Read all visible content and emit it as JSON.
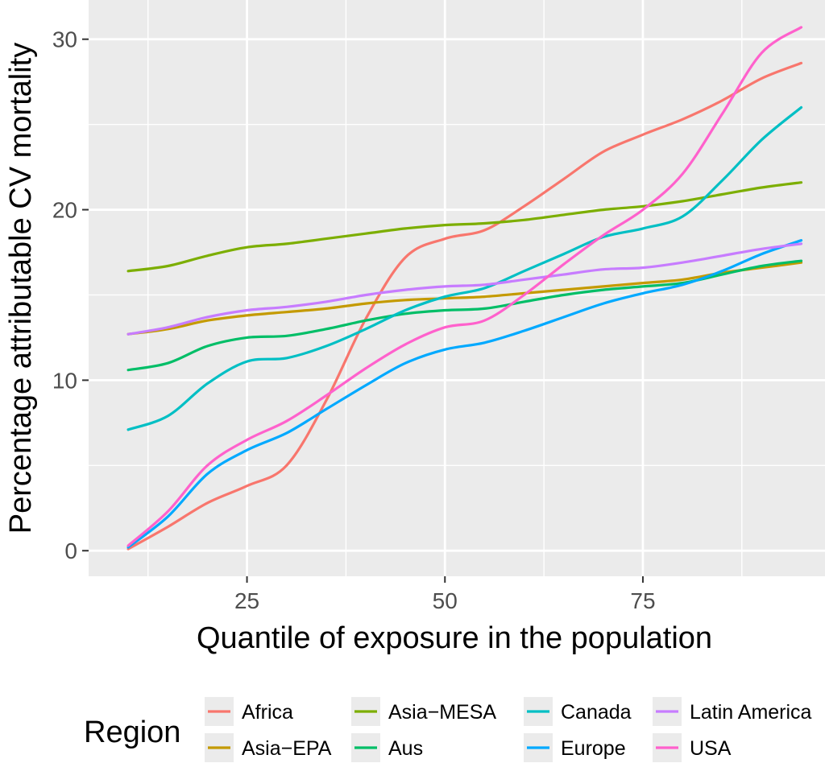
{
  "chart_data": {
    "type": "line",
    "title": "",
    "xlabel": "Quantile of exposure in the population",
    "ylabel": "Percentage attributable CV mortality",
    "xlim": [
      5,
      98
    ],
    "ylim": [
      -1.5,
      32.3
    ],
    "x_ticks": [
      25,
      50,
      75
    ],
    "y_ticks": [
      0,
      10,
      20,
      30
    ],
    "grid": true,
    "legend": {
      "title": "Region",
      "position": "bottom"
    },
    "series": [
      {
        "name": "Africa",
        "color": "#F8766D",
        "x": [
          10,
          15,
          20,
          25,
          30,
          35,
          40,
          45,
          50,
          55,
          60,
          65,
          70,
          75,
          80,
          85,
          90,
          95
        ],
        "y": [
          0.1,
          1.4,
          2.8,
          3.8,
          5.0,
          8.8,
          13.6,
          17.2,
          18.3,
          18.8,
          20.2,
          21.8,
          23.4,
          24.4,
          25.3,
          26.4,
          27.7,
          28.6
        ]
      },
      {
        "name": "Asia−EPA",
        "color": "#C49A00",
        "x": [
          10,
          15,
          20,
          25,
          30,
          35,
          40,
          45,
          50,
          55,
          60,
          65,
          70,
          75,
          80,
          85,
          90,
          95
        ],
        "y": [
          12.7,
          13.0,
          13.5,
          13.8,
          14.0,
          14.2,
          14.5,
          14.7,
          14.8,
          14.9,
          15.1,
          15.3,
          15.5,
          15.7,
          15.9,
          16.3,
          16.6,
          16.9
        ]
      },
      {
        "name": "Asia−MESA",
        "color": "#7CAE00",
        "x": [
          10,
          15,
          20,
          25,
          30,
          35,
          40,
          45,
          50,
          55,
          60,
          65,
          70,
          75,
          80,
          85,
          90,
          95
        ],
        "y": [
          16.4,
          16.7,
          17.3,
          17.8,
          18.0,
          18.3,
          18.6,
          18.9,
          19.1,
          19.2,
          19.4,
          19.7,
          20.0,
          20.2,
          20.5,
          20.9,
          21.3,
          21.6
        ]
      },
      {
        "name": "Aus",
        "color": "#00BE67",
        "x": [
          10,
          15,
          20,
          25,
          30,
          35,
          40,
          45,
          50,
          55,
          60,
          65,
          70,
          75,
          80,
          85,
          90,
          95
        ],
        "y": [
          10.6,
          11.0,
          12.0,
          12.5,
          12.6,
          13.0,
          13.5,
          13.9,
          14.1,
          14.2,
          14.6,
          15.0,
          15.3,
          15.5,
          15.7,
          16.2,
          16.7,
          17.0
        ]
      },
      {
        "name": "Canada",
        "color": "#00BFC4",
        "x": [
          10,
          15,
          20,
          25,
          30,
          35,
          40,
          45,
          50,
          55,
          60,
          65,
          70,
          75,
          80,
          85,
          90,
          95
        ],
        "y": [
          7.1,
          7.9,
          9.8,
          11.1,
          11.3,
          12.0,
          13.0,
          14.1,
          14.9,
          15.4,
          16.4,
          17.4,
          18.4,
          18.9,
          19.6,
          21.7,
          24.1,
          26.0
        ]
      },
      {
        "name": "Europe",
        "color": "#00A9FF",
        "x": [
          10,
          15,
          20,
          25,
          30,
          35,
          40,
          45,
          50,
          55,
          60,
          65,
          70,
          75,
          80,
          85,
          90,
          95
        ],
        "y": [
          0.2,
          2.0,
          4.5,
          5.9,
          6.9,
          8.3,
          9.7,
          11.0,
          11.8,
          12.2,
          12.9,
          13.7,
          14.5,
          15.1,
          15.6,
          16.4,
          17.4,
          18.2
        ]
      },
      {
        "name": "Latin America",
        "color": "#C77CFF",
        "x": [
          10,
          15,
          20,
          25,
          30,
          35,
          40,
          45,
          50,
          55,
          60,
          65,
          70,
          75,
          80,
          85,
          90,
          95
        ],
        "y": [
          12.7,
          13.1,
          13.7,
          14.1,
          14.3,
          14.6,
          15.0,
          15.3,
          15.5,
          15.6,
          15.9,
          16.2,
          16.5,
          16.6,
          16.9,
          17.3,
          17.7,
          18.0
        ]
      },
      {
        "name": "USA",
        "color": "#FF61CC",
        "x": [
          10,
          15,
          20,
          25,
          30,
          35,
          40,
          45,
          50,
          55,
          60,
          65,
          70,
          75,
          80,
          85,
          90,
          95
        ],
        "y": [
          0.3,
          2.3,
          5.0,
          6.5,
          7.6,
          9.1,
          10.7,
          12.1,
          13.1,
          13.5,
          15.0,
          16.8,
          18.5,
          20.0,
          22.1,
          25.6,
          29.2,
          30.7
        ]
      }
    ]
  }
}
